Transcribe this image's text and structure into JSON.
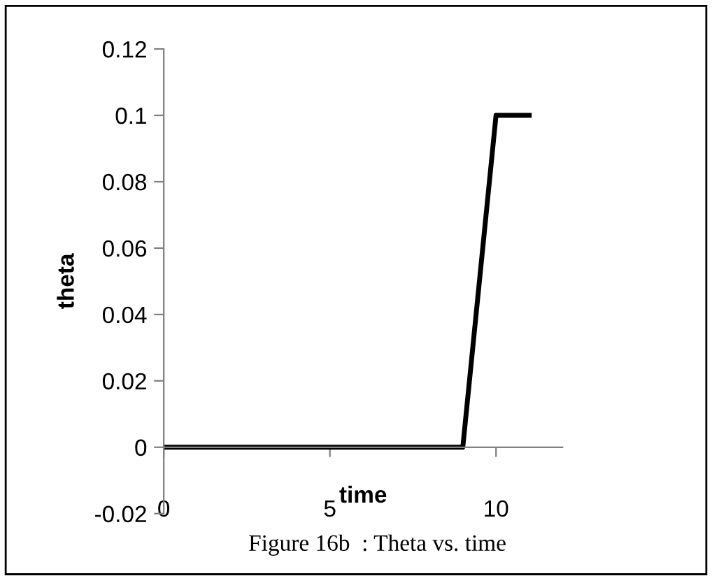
{
  "chart_data": {
    "type": "line",
    "xlabel": "time",
    "ylabel": "theta",
    "annotations": [
      "Figure 16b  : Theta vs. time"
    ],
    "x": [
      0,
      9,
      10,
      11
    ],
    "series": [
      {
        "color": "#000000",
        "values": [
          0,
          0,
          0.1,
          0.1
        ]
      }
    ],
    "xlim": [
      0,
      12
    ],
    "xticks": [
      0,
      5,
      10
    ],
    "ylim": [
      -0.02,
      0.12
    ],
    "yticks": [
      -0.02,
      0,
      0.02,
      0.04,
      0.06,
      0.08,
      0.1,
      0.12
    ],
    "grid": false,
    "marker": "none",
    "line_style": "solid"
  }
}
